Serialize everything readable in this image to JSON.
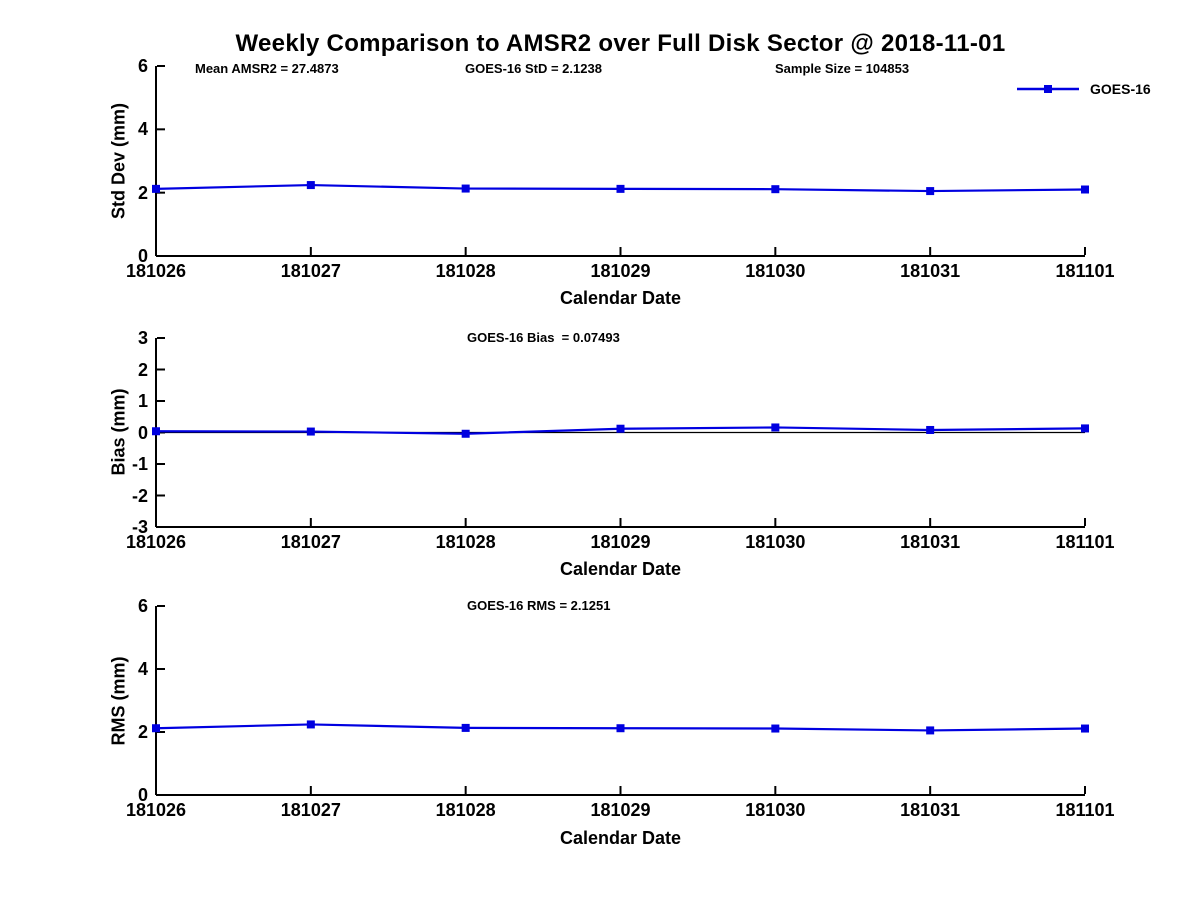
{
  "title": "Weekly Comparison to AMSR2 over Full Disk Sector @ 2018-11-01",
  "legend": {
    "label": "GOES-16"
  },
  "series_color": "#0000e0",
  "axis_color": "#000000",
  "x_ticklabels": [
    "181026",
    "181027",
    "181028",
    "181029",
    "181030",
    "181031",
    "181101"
  ],
  "chart_data": [
    {
      "type": "line",
      "name": "Std Dev",
      "ylabel": "Std Dev (mm)",
      "xlabel": "Calendar Date",
      "annotations": [
        "Mean AMSR2 = 27.4873",
        "GOES-16 StD = 2.1238",
        "Sample Size = 104853"
      ],
      "categories": [
        "181026",
        "181027",
        "181028",
        "181029",
        "181030",
        "181031",
        "181101"
      ],
      "series": [
        {
          "name": "GOES-16",
          "values": [
            2.12,
            2.24,
            2.13,
            2.12,
            2.11,
            2.05,
            2.1
          ]
        }
      ],
      "ylim": [
        0,
        6
      ],
      "yticks": [
        0,
        2,
        4,
        6
      ],
      "grid": false,
      "legend_position": "top-right",
      "zero_line": false
    },
    {
      "type": "line",
      "name": "Bias",
      "ylabel": "Bias (mm)",
      "xlabel": "Calendar Date",
      "annotations": [
        "GOES-16 Bias  = 0.07493"
      ],
      "categories": [
        "181026",
        "181027",
        "181028",
        "181029",
        "181030",
        "181031",
        "181101"
      ],
      "series": [
        {
          "name": "GOES-16",
          "values": [
            0.04,
            0.03,
            -0.04,
            0.12,
            0.16,
            0.08,
            0.13
          ]
        }
      ],
      "ylim": [
        -3,
        3
      ],
      "yticks": [
        3,
        2,
        1,
        0,
        -1,
        -2,
        -3
      ],
      "grid": false,
      "zero_line": true
    },
    {
      "type": "line",
      "name": "RMS",
      "ylabel": "RMS (mm)",
      "xlabel": "Calendar Date",
      "annotations": [
        "GOES-16 RMS = 2.1251"
      ],
      "categories": [
        "181026",
        "181027",
        "181028",
        "181029",
        "181030",
        "181031",
        "181101"
      ],
      "series": [
        {
          "name": "GOES-16",
          "values": [
            2.12,
            2.24,
            2.13,
            2.12,
            2.11,
            2.05,
            2.11
          ]
        }
      ],
      "ylim": [
        0,
        6
      ],
      "yticks": [
        0,
        2,
        4,
        6
      ],
      "grid": false,
      "zero_line": false
    }
  ]
}
